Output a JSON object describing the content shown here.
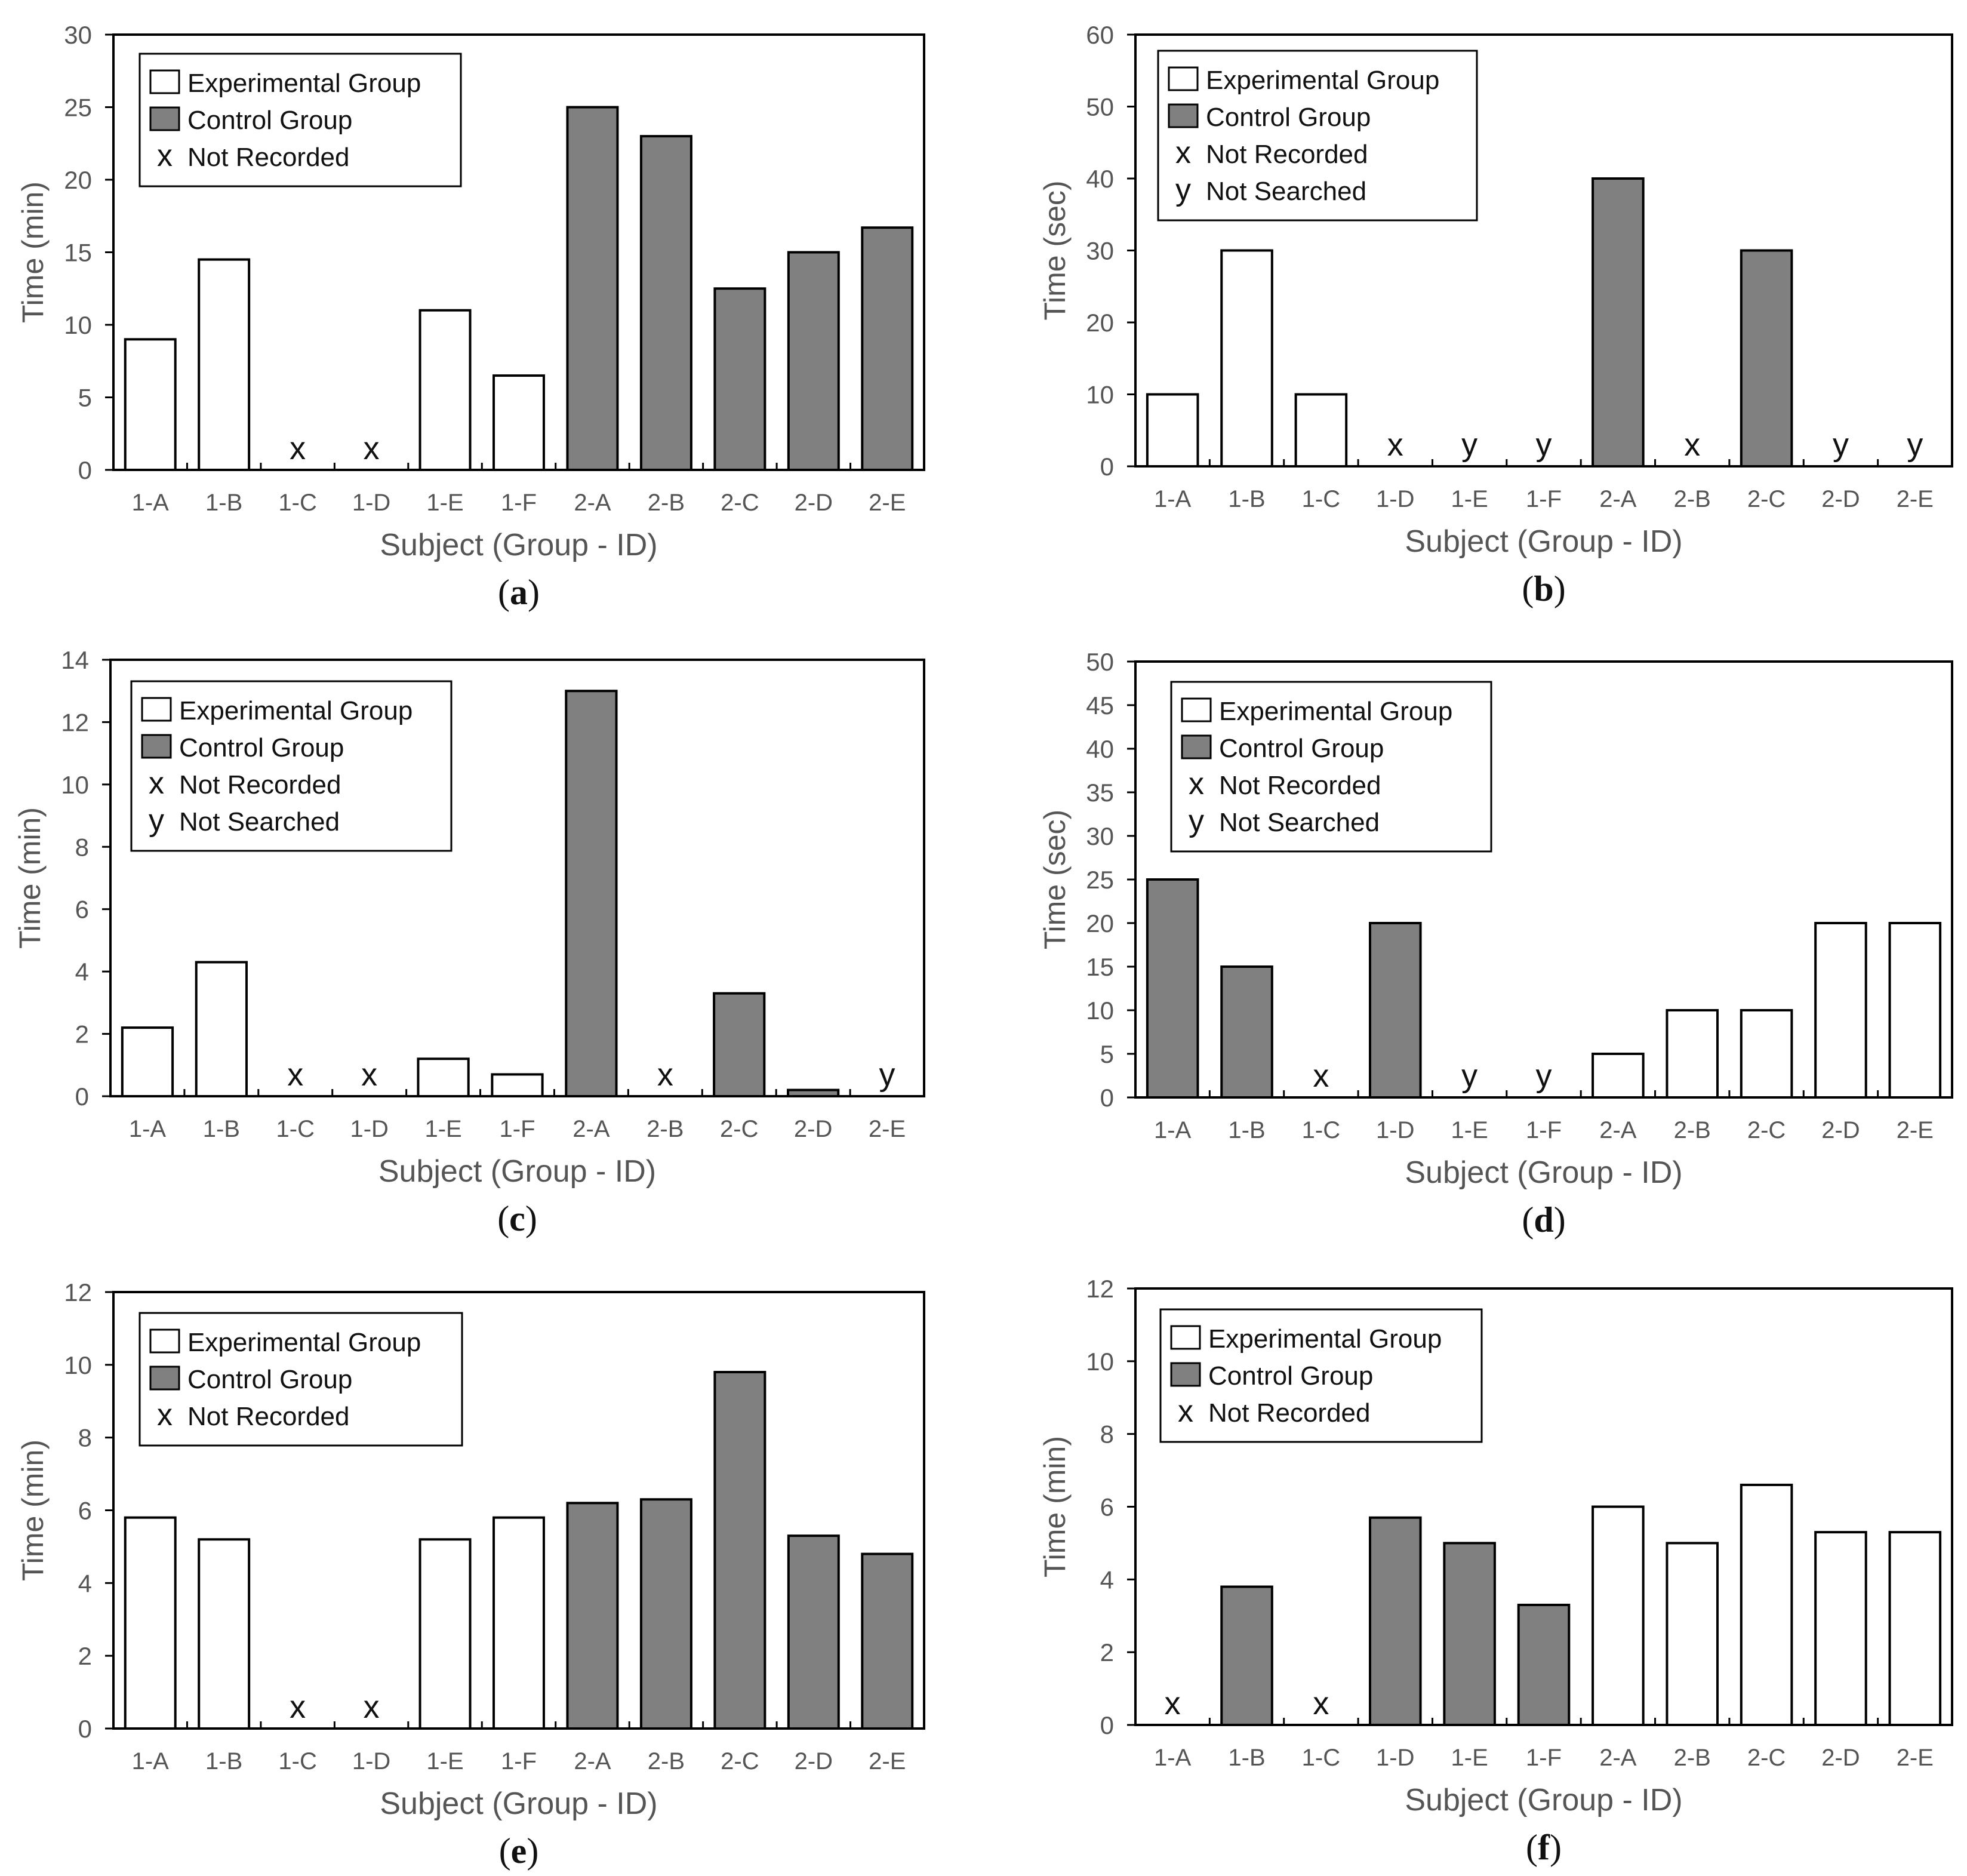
{
  "colors": {
    "experimental": "#ffffff",
    "control": "#808080",
    "stroke": "#000000",
    "text": "#555555"
  },
  "legend_labels": {
    "experimental": "Experimental Group",
    "control": "Control Group",
    "not_recorded_symbol": "x",
    "not_recorded": "Not Recorded",
    "not_searched_symbol": "y",
    "not_searched": "Not Searched"
  },
  "chart_data": [
    {
      "id": "a",
      "caption_open": "(",
      "caption_letter": "a",
      "caption_close": ")",
      "type": "bar",
      "title": "",
      "xlabel": "Subject (Group - ID)",
      "ylabel": "Time (min)",
      "ylim": [
        0,
        30
      ],
      "yticks": [
        "0",
        "5",
        "10",
        "15",
        "20",
        "25",
        "30"
      ],
      "categories": [
        "1-A",
        "1-B",
        "1-C",
        "1-D",
        "1-E",
        "1-F",
        "2-A",
        "2-B",
        "2-C",
        "2-D",
        "2-E"
      ],
      "values": [
        9,
        14.5,
        null,
        null,
        11,
        6.5,
        25,
        23,
        12.5,
        15,
        16.7
      ],
      "groups": [
        "experimental",
        "experimental",
        "experimental",
        "experimental",
        "experimental",
        "experimental",
        "control",
        "control",
        "control",
        "control",
        "control"
      ],
      "markers": [
        "",
        "",
        "x",
        "x",
        "",
        "",
        "",
        "",
        "",
        "",
        ""
      ],
      "legend": [
        "experimental",
        "control",
        "not_recorded"
      ]
    },
    {
      "id": "b",
      "caption_open": "(",
      "caption_letter": "b",
      "caption_close": ")",
      "type": "bar",
      "title": "",
      "xlabel": "Subject (Group - ID)",
      "ylabel": "Time (sec)",
      "ylim": [
        0,
        60
      ],
      "yticks": [
        "0",
        "10",
        "20",
        "30",
        "40",
        "50",
        "60"
      ],
      "categories": [
        "1-A",
        "1-B",
        "1-C",
        "1-D",
        "1-E",
        "1-F",
        "2-A",
        "2-B",
        "2-C",
        "2-D",
        "2-E"
      ],
      "values": [
        10,
        30,
        10,
        null,
        null,
        null,
        40,
        null,
        30,
        null,
        null
      ],
      "groups": [
        "experimental",
        "experimental",
        "experimental",
        "experimental",
        "experimental",
        "experimental",
        "control",
        "control",
        "control",
        "control",
        "control"
      ],
      "markers": [
        "",
        "",
        "",
        "x",
        "y",
        "y",
        "",
        "x",
        "",
        "y",
        "y"
      ],
      "legend": [
        "experimental",
        "control",
        "not_recorded",
        "not_searched"
      ]
    },
    {
      "id": "c",
      "caption_open": "(",
      "caption_letter": "c",
      "caption_close": ")",
      "type": "bar",
      "title": "",
      "xlabel": "Subject (Group - ID)",
      "ylabel": "Time (min)",
      "ylim": [
        0,
        14
      ],
      "yticks": [
        "0",
        "2",
        "4",
        "6",
        "8",
        "10",
        "12",
        "14"
      ],
      "categories": [
        "1-A",
        "1-B",
        "1-C",
        "1-D",
        "1-E",
        "1-F",
        "2-A",
        "2-B",
        "2-C",
        "2-D",
        "2-E"
      ],
      "values": [
        2.2,
        4.3,
        null,
        null,
        1.2,
        0.7,
        13,
        null,
        3.3,
        0.2,
        null
      ],
      "groups": [
        "experimental",
        "experimental",
        "experimental",
        "experimental",
        "experimental",
        "experimental",
        "control",
        "control",
        "control",
        "control",
        "control"
      ],
      "markers": [
        "",
        "",
        "x",
        "x",
        "",
        "",
        "",
        "x",
        "",
        "",
        "y"
      ],
      "legend": [
        "experimental",
        "control",
        "not_recorded",
        "not_searched"
      ]
    },
    {
      "id": "d",
      "caption_open": "(",
      "caption_letter": "d",
      "caption_close": ")",
      "type": "bar",
      "title": "",
      "xlabel": "Subject (Group - ID)",
      "ylabel": "Time (sec)",
      "ylim": [
        0,
        50
      ],
      "yticks": [
        "0",
        "5",
        "10",
        "15",
        "20",
        "25",
        "30",
        "35",
        "40",
        "45",
        "50"
      ],
      "categories": [
        "1-A",
        "1-B",
        "1-C",
        "1-D",
        "1-E",
        "1-F",
        "2-A",
        "2-B",
        "2-C",
        "2-D",
        "2-E"
      ],
      "values": [
        25,
        15,
        null,
        20,
        null,
        null,
        5,
        10,
        10,
        20,
        20
      ],
      "groups": [
        "control",
        "control",
        "control",
        "control",
        "control",
        "control",
        "experimental",
        "experimental",
        "experimental",
        "experimental",
        "experimental"
      ],
      "markers": [
        "",
        "",
        "x",
        "",
        "y",
        "y",
        "",
        "",
        "",
        "",
        ""
      ],
      "legend": [
        "experimental",
        "control",
        "not_recorded",
        "not_searched"
      ]
    },
    {
      "id": "e",
      "caption_open": "(",
      "caption_letter": "e",
      "caption_close": ")",
      "type": "bar",
      "title": "",
      "xlabel": "Subject (Group - ID)",
      "ylabel": "Time (min)",
      "ylim": [
        0,
        12
      ],
      "yticks": [
        "0",
        "2",
        "4",
        "6",
        "8",
        "10",
        "12"
      ],
      "categories": [
        "1-A",
        "1-B",
        "1-C",
        "1-D",
        "1-E",
        "1-F",
        "2-A",
        "2-B",
        "2-C",
        "2-D",
        "2-E"
      ],
      "values": [
        5.8,
        5.2,
        null,
        null,
        5.2,
        5.8,
        6.2,
        6.3,
        9.8,
        5.3,
        4.8
      ],
      "groups": [
        "experimental",
        "experimental",
        "experimental",
        "experimental",
        "experimental",
        "experimental",
        "control",
        "control",
        "control",
        "control",
        "control"
      ],
      "markers": [
        "",
        "",
        "x",
        "x",
        "",
        "",
        "",
        "",
        "",
        "",
        ""
      ],
      "legend": [
        "experimental",
        "control",
        "not_recorded"
      ]
    },
    {
      "id": "f",
      "caption_open": "(",
      "caption_letter": "f",
      "caption_close": ")",
      "type": "bar",
      "title": "",
      "xlabel": "Subject (Group - ID)",
      "ylabel": "Time (min)",
      "ylim": [
        0,
        12
      ],
      "yticks": [
        "0",
        "2",
        "4",
        "6",
        "8",
        "10",
        "12"
      ],
      "categories": [
        "1-A",
        "1-B",
        "1-C",
        "1-D",
        "1-E",
        "1-F",
        "2-A",
        "2-B",
        "2-C",
        "2-D",
        "2-E"
      ],
      "values": [
        null,
        3.8,
        null,
        5.7,
        5,
        3.3,
        6,
        5,
        6.6,
        5.3,
        5.3
      ],
      "groups": [
        "control",
        "control",
        "control",
        "control",
        "control",
        "control",
        "experimental",
        "experimental",
        "experimental",
        "experimental",
        "experimental"
      ],
      "markers": [
        "x",
        "",
        "x",
        "",
        "",
        "",
        "",
        "",
        "",
        "",
        ""
      ],
      "legend": [
        "experimental",
        "control",
        "not_recorded"
      ]
    }
  ]
}
